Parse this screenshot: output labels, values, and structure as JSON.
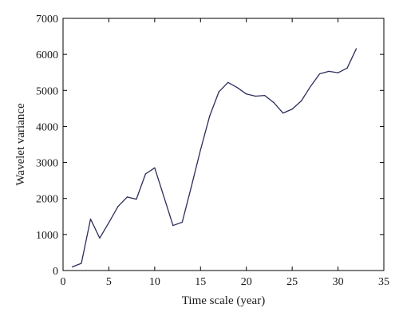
{
  "chart_data": {
    "type": "line",
    "title": "",
    "xlabel": "Time scale (year)",
    "ylabel": "Wavelet variance",
    "xlim": [
      0,
      35
    ],
    "ylim": [
      0,
      7000
    ],
    "xticks": [
      0,
      5,
      10,
      15,
      20,
      25,
      30,
      35
    ],
    "yticks": [
      0,
      1000,
      2000,
      3000,
      4000,
      5000,
      6000,
      7000
    ],
    "grid": false,
    "legend": "none",
    "series": [
      {
        "color": "#2b2d5c",
        "x": [
          1,
          2,
          3,
          4,
          5,
          6,
          7,
          8,
          9,
          10,
          11,
          12,
          13,
          14,
          15,
          16,
          17,
          18,
          19,
          20,
          21,
          22,
          23,
          24,
          25,
          26,
          27,
          28,
          29,
          30,
          31,
          32
        ],
        "y": [
          100,
          200,
          1430,
          900,
          1330,
          1780,
          2040,
          1980,
          2680,
          2850,
          2050,
          1250,
          1340,
          2330,
          3350,
          4290,
          4960,
          5220,
          5080,
          4900,
          4840,
          4860,
          4660,
          4370,
          4480,
          4710,
          5110,
          5460,
          5530,
          5490,
          5620,
          6160
        ]
      }
    ]
  }
}
